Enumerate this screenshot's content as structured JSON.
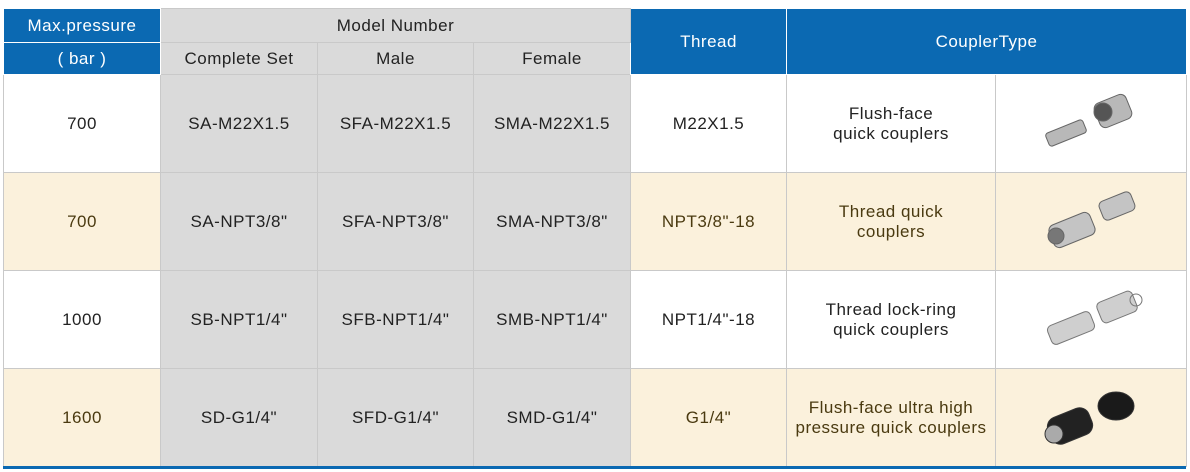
{
  "header": {
    "max_pressure": "Max.pressure",
    "unit": "( bar )",
    "model_number": "Model Number",
    "complete_set": "Complete Set",
    "male": "Male",
    "female": "Female",
    "thread": "Thread",
    "coupler_type": "CouplerType"
  },
  "colors": {
    "header_blue": "#0b69b2",
    "model_gray": "#dadada",
    "alt_row": "#fbf1dc"
  },
  "rows": [
    {
      "pressure": "700",
      "complete_set": "SA-M22X1.5",
      "male": "SFA-M22X1.5",
      "female": "SMA-M22X1.5",
      "thread": "M22X1.5",
      "type_line1": "Flush-face",
      "type_line2": "quick couplers",
      "image": "flush-face-coupler-image"
    },
    {
      "pressure": "700",
      "complete_set": "SA-NPT3/8\"",
      "male": "SFA-NPT3/8\"",
      "female": "SMA-NPT3/8\"",
      "thread": "NPT3/8\"-18",
      "type_line1": "Thread quick",
      "type_line2": "couplers",
      "image": "thread-coupler-image"
    },
    {
      "pressure": "1000",
      "complete_set": "SB-NPT1/4\"",
      "male": "SFB-NPT1/4\"",
      "female": "SMB-NPT1/4\"",
      "thread": "NPT1/4\"-18",
      "type_line1": "Thread lock-ring",
      "type_line2": "quick couplers",
      "image": "lock-ring-coupler-image"
    },
    {
      "pressure": "1600",
      "complete_set": "SD-G1/4\"",
      "male": "SFD-G1/4\"",
      "female": "SMD-G1/4\"",
      "thread": "G1/4\"",
      "type_line1": "Flush-face ultra high",
      "type_line2": "pressure quick couplers",
      "image": "ultra-high-pressure-coupler-image"
    }
  ]
}
